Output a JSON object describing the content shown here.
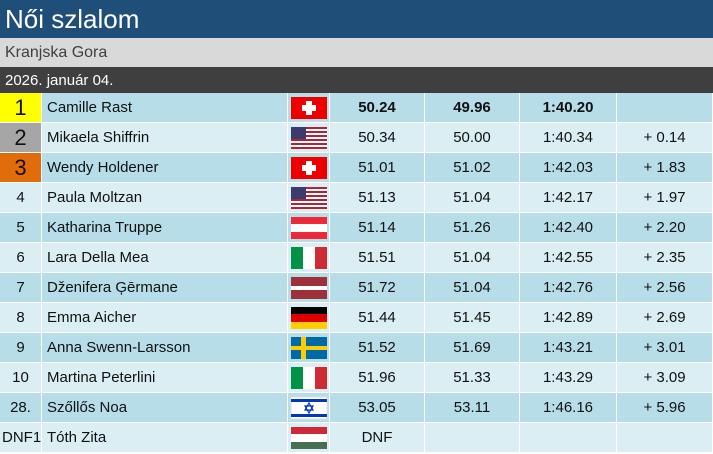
{
  "header": {
    "title": "Női szlalom",
    "venue": "Kranjska Gora",
    "date": "2026. január 04."
  },
  "table": {
    "rows": [
      {
        "rank": "1",
        "name": "Camille Rast",
        "run1": "50.24",
        "run2": "49.96",
        "total": "1:40.20"
      },
      {
        "rank": "2",
        "name": "Mikaela Shiffrin",
        "run1": "50.34",
        "run2": "50.00",
        "total": "1:40.34",
        "diff": "+ 0.14"
      },
      {
        "rank": "3",
        "name": "Wendy Holdener",
        "run1": "51.01",
        "run2": "51.02",
        "total": "1:42.03",
        "diff": "+ 1.83"
      },
      {
        "rank": "4",
        "name": "Paula Moltzan",
        "run1": "51.13",
        "run2": "51.04",
        "total": "1:42.17",
        "diff": "+ 1.97"
      },
      {
        "rank": "5",
        "name": "Katharina Truppe",
        "run1": "51.14",
        "run2": "51.26",
        "total": "1:42.40",
        "diff": "+ 2.20"
      },
      {
        "rank": "6",
        "name": "Lara Della Mea",
        "run1": "51.51",
        "run2": "51.04",
        "total": "1:42.55",
        "diff": "+ 2.35"
      },
      {
        "rank": "7",
        "name": "Dženifera Ģērmane",
        "run1": "51.72",
        "run2": "51.04",
        "total": "1:42.76",
        "diff": "+ 2.56"
      },
      {
        "rank": "8",
        "name": "Emma Aicher",
        "run1": "51.44",
        "run2": "51.45",
        "total": "1:42.89",
        "diff": "+ 2.69"
      },
      {
        "rank": "9",
        "name": "Anna Swenn-Larsson",
        "run1": "51.52",
        "run2": "51.69",
        "total": "1:43.21",
        "diff": "+ 3.01"
      },
      {
        "rank": "10",
        "name": "Martina Peterlini",
        "run1": "51.96",
        "run2": "51.33",
        "total": "1:43.29",
        "diff": "+ 3.09"
      },
      {
        "rank": "28.",
        "name": "Szőllős Noa",
        "run1": "53.05",
        "run2": "53.11",
        "total": "1:46.16",
        "diff": "+ 5.96"
      },
      {
        "rank": "DNF1",
        "name": "Tóth Zita",
        "run1": "DNF"
      }
    ]
  }
}
